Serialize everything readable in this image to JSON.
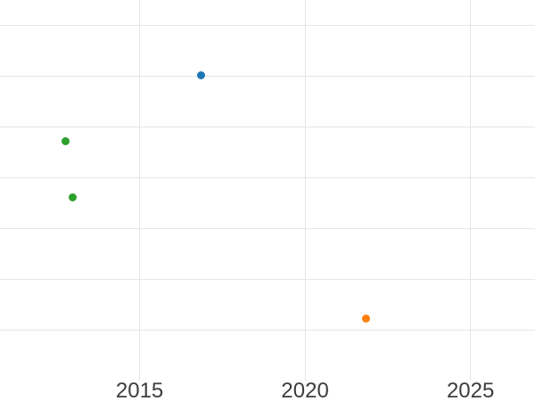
{
  "style": {
    "background_color": "#ffffff",
    "gridline_color": "#e5e5e5",
    "tick_label_color": "#3d3d3d"
  },
  "chart_data": {
    "type": "scatter",
    "title": "",
    "xlabel": "",
    "ylabel": "",
    "legend": "none",
    "x_axis": {
      "tick_labels": [
        "2015",
        "2020",
        "2025"
      ],
      "tick_values": [
        2015,
        2020,
        2025
      ],
      "range": [
        2010.78,
        2026.95
      ],
      "grid": true
    },
    "y_axis": {
      "tick_labels": [],
      "unit": "gridline-units (no y tick labels visible in image)",
      "gridline_values": [
        0,
        1,
        2,
        3,
        4,
        5,
        6
      ],
      "range": [
        -0.96,
        6.5
      ],
      "grid": true
    },
    "series": [
      {
        "name": "blue-series",
        "color": "#1f77b4",
        "points": [
          {
            "x": 2016.87,
            "y": 5.02
          }
        ]
      },
      {
        "name": "orange-series",
        "color": "#ff7f0e",
        "points": [
          {
            "x": 2021.83,
            "y": 0.23
          }
        ]
      },
      {
        "name": "green-series",
        "color": "#2ca02c",
        "points": [
          {
            "x": 2012.76,
            "y": 3.72
          },
          {
            "x": 2012.97,
            "y": 2.62
          }
        ]
      }
    ],
    "marker_diameter_px": 9
  }
}
